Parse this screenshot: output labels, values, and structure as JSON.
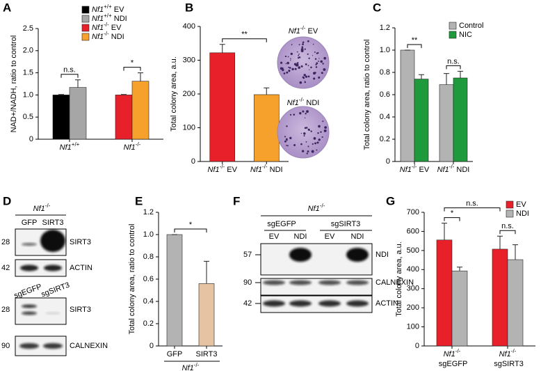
{
  "chart_data": [
    {
      "type": "bar",
      "label": "A",
      "ylabel": "NAD+/NADH, ratio to control",
      "categories": [
        "Nf1+/+",
        "Nf1-/-"
      ],
      "series": [
        {
          "name": "Nf1+/+ EV",
          "color": "#000000",
          "values": [
            1.0,
            null
          ],
          "errors": [
            0.01,
            null
          ]
        },
        {
          "name": "Nf1+/+ NDI",
          "color": "#a6a6a6",
          "values": [
            1.17,
            null
          ],
          "errors": [
            0.17,
            null
          ]
        },
        {
          "name": "Nf1-/- EV",
          "color": "#e8202a",
          "values": [
            null,
            1.0
          ],
          "errors": [
            null,
            0.01
          ]
        },
        {
          "name": "Nf1-/- NDI",
          "color": "#f7a12d",
          "values": [
            null,
            1.31
          ],
          "errors": [
            null,
            0.19
          ]
        }
      ],
      "ylim": [
        0,
        2.5
      ],
      "yticks": [
        0,
        0.5,
        {
          "value": 1,
          "label": "1.0"
        },
        1.5,
        {
          "value": 2,
          "label": "2.0"
        },
        2.5
      ],
      "annotations": [
        "n.s.",
        "*"
      ]
    },
    {
      "type": "bar",
      "label": "B",
      "ylabel": "Total colony area, a.u.",
      "categories": [
        "Nf1-/- EV",
        "Nf1-/- NDI"
      ],
      "values": [
        322,
        198
      ],
      "errors": [
        25,
        20
      ],
      "colors": [
        "#e8202a",
        "#f7a12d"
      ],
      "ylim": [
        0,
        400
      ],
      "yticks": [
        0,
        100,
        200,
        300,
        400
      ],
      "annotations": [
        "**"
      ],
      "images": [
        "Nf1-/- EV",
        "Nf1-/- NDI"
      ]
    },
    {
      "type": "bar",
      "label": "C",
      "ylabel": "Total colony area, ratio to control",
      "categories": [
        "Nf1-/- EV",
        "Nf1-/- NDI"
      ],
      "series": [
        {
          "name": "Control",
          "color": "#b3b3b3",
          "values": [
            1.0,
            0.69
          ],
          "errors": [
            0,
            0.1
          ]
        },
        {
          "name": "NIC",
          "color": "#1e9a3c",
          "values": [
            0.74,
            0.75
          ],
          "errors": [
            0.04,
            0.06
          ]
        }
      ],
      "ylim": [
        0,
        1.2
      ],
      "yticks": [
        0,
        0.2,
        0.4,
        0.6,
        0.8,
        {
          "value": 1,
          "label": "1.0"
        },
        1.2
      ],
      "annotations": [
        "**",
        "n.s."
      ]
    },
    {
      "type": "bar",
      "label": "E",
      "ylabel": "Total colony area, ratio to control",
      "xlabel": "Nf1-/-",
      "categories": [
        "GFP",
        "SIRT3"
      ],
      "values": [
        1.0,
        0.56
      ],
      "errors": [
        0,
        0.2
      ],
      "colors": [
        "#b3b3b3",
        "#e6c3a3"
      ],
      "ylim": [
        0,
        1.2
      ],
      "yticks": [
        0,
        0.2,
        0.4,
        0.6,
        0.8,
        {
          "value": 1,
          "label": "1.0"
        },
        1.2
      ],
      "annotations": [
        "*"
      ]
    },
    {
      "type": "bar",
      "label": "G",
      "ylabel": "Total colony area, a.u.",
      "categories": [
        "Nf1-/- sgEGFP",
        "Nf1-/- sgSIRT3"
      ],
      "series": [
        {
          "name": "EV",
          "color": "#e8202a",
          "values": [
            555,
            507
          ],
          "errors": [
            88,
            68
          ]
        },
        {
          "name": "NDI",
          "color": "#b3b3b3",
          "values": [
            393,
            452
          ],
          "errors": [
            20,
            78
          ]
        }
      ],
      "ylim": [
        0,
        700
      ],
      "yticks": [
        0,
        100,
        200,
        300,
        400,
        500,
        600,
        700
      ],
      "annotations": [
        "*",
        "n.s.",
        "n.s."
      ]
    }
  ],
  "blots": {
    "D": {
      "label": "D",
      "genotype": "Nf1-/-",
      "top": {
        "lanes": [
          "GFP",
          "SIRT3"
        ],
        "rows": [
          {
            "marker": "28",
            "protein": "SIRT3"
          },
          {
            "marker": "42",
            "protein": "ACTIN"
          }
        ]
      },
      "bottom": {
        "lanes": [
          "sgEGFP",
          "sgSIRT3"
        ],
        "rows": [
          {
            "marker": "28",
            "protein": "SIRT3"
          },
          {
            "marker": "90",
            "protein": "CALNEXIN"
          }
        ]
      }
    },
    "F": {
      "label": "F",
      "genotype": "Nf1-/-",
      "groups": [
        "sgEGFP",
        "sgSIRT3"
      ],
      "lanes": [
        "EV",
        "NDI",
        "EV",
        "NDI"
      ],
      "rows": [
        {
          "marker": "57",
          "protein": "NDI"
        },
        {
          "marker": "90",
          "protein": "CALNEXIN"
        },
        {
          "marker": "42",
          "protein": "ACTIN"
        }
      ]
    }
  }
}
